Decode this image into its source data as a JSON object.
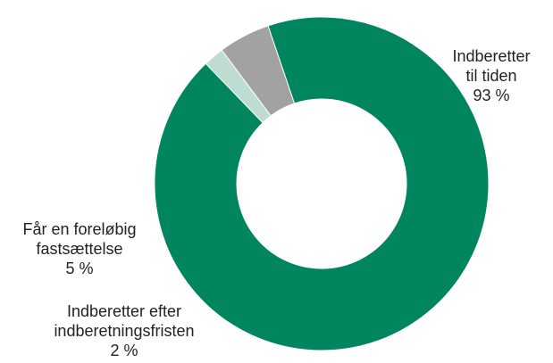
{
  "chart_data": {
    "type": "pie",
    "variant": "donut",
    "slices": [
      {
        "lines": [
          "Indberetter",
          "til tiden"
        ],
        "value": 93,
        "value_label": "93 %",
        "color": "#00855f"
      },
      {
        "lines": [
          "Indberetter efter",
          "indberetningsfristen"
        ],
        "value": 2,
        "value_label": "2 %",
        "color": "#bfdcd1"
      },
      {
        "lines": [
          "Får en foreløbig",
          "fastsættelse"
        ],
        "value": 5,
        "value_label": "5 %",
        "color": "#a2a2a2"
      }
    ]
  }
}
